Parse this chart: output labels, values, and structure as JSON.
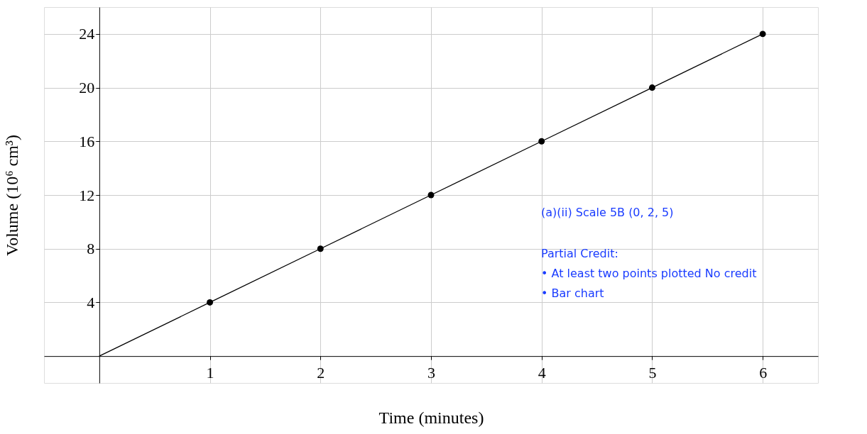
{
  "chart_data": {
    "type": "line",
    "xlabel": "Time (minutes)",
    "ylabel": "Volume  (10⁶ cm³)",
    "xlim": [
      -0.5,
      6.5
    ],
    "ylim": [
      -2,
      26
    ],
    "xticks": [
      1,
      2,
      3,
      4,
      5,
      6
    ],
    "yticks": [
      4,
      8,
      12,
      16,
      20,
      24
    ],
    "grid": true,
    "series": [
      {
        "color": "#000000",
        "marker": "none",
        "x": [
          0,
          1,
          2,
          3,
          4,
          5,
          6
        ],
        "values": [
          0,
          4,
          8,
          12,
          16,
          20,
          24
        ]
      },
      {
        "type": "scatter",
        "color": "#000000",
        "marker": "circle",
        "x": [
          1,
          2,
          3,
          4,
          5,
          6
        ],
        "values": [
          4,
          8,
          12,
          16,
          20,
          24
        ]
      }
    ],
    "annotations": [
      "(a)(ii) Scale 5B (0, 2, 5)",
      "Partial Credit:",
      "• At least two points plotted No credit",
      "• Bar chart"
    ]
  }
}
